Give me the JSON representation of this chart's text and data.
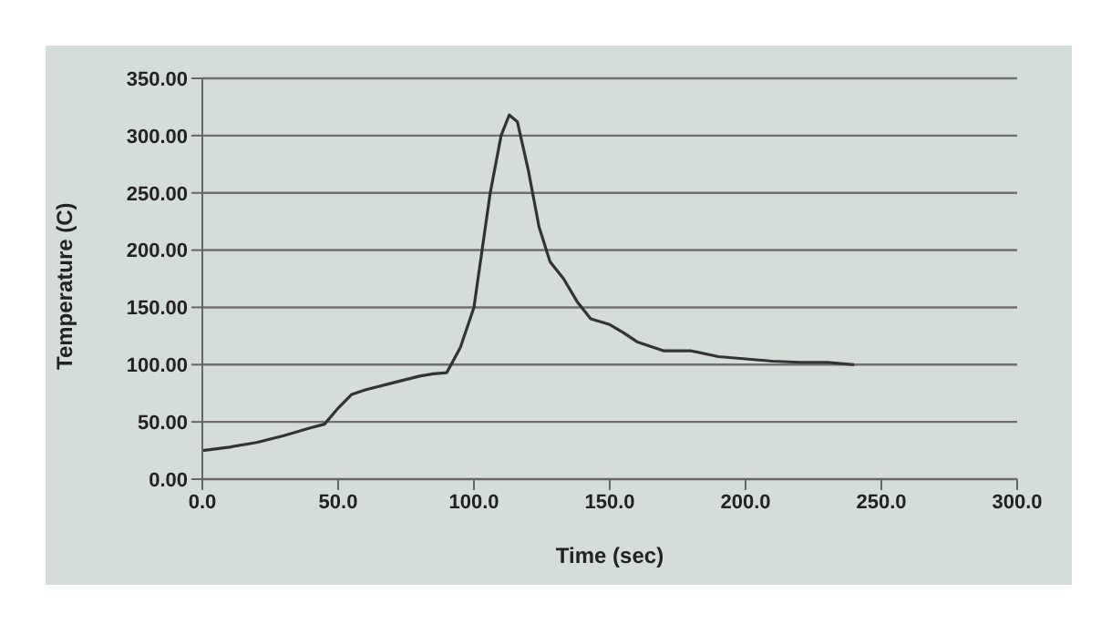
{
  "chart_data": {
    "type": "line",
    "xlabel": "Time (sec)",
    "ylabel": "Temperature (C)",
    "x": [
      0,
      10,
      20,
      30,
      40,
      45,
      50,
      55,
      60,
      70,
      80,
      85,
      90,
      95,
      100,
      103,
      106,
      110,
      113,
      116,
      120,
      124,
      128,
      133,
      138,
      143,
      150,
      155,
      160,
      170,
      180,
      190,
      200,
      210,
      220,
      230,
      240
    ],
    "series": [
      {
        "color": "#333333",
        "values": [
          25,
          28,
          32,
          38,
          45,
          48,
          62,
          74,
          78,
          84,
          90,
          92,
          93,
          115,
          150,
          200,
          250,
          300,
          318,
          312,
          270,
          220,
          190,
          175,
          155,
          140,
          135,
          128,
          120,
          112,
          112,
          107,
          105,
          103,
          102,
          102,
          100
        ]
      }
    ],
    "xlim": [
      0,
      300
    ],
    "xticks": [
      {
        "value": 0,
        "label": "0.0"
      },
      {
        "value": 50,
        "label": "50.0"
      },
      {
        "value": 100,
        "label": "100.0"
      },
      {
        "value": 150,
        "label": "150.0"
      },
      {
        "value": 200,
        "label": "200.0"
      },
      {
        "value": 250,
        "label": "250.0"
      },
      {
        "value": 300,
        "label": "300.0"
      }
    ],
    "ylim": [
      0,
      350
    ],
    "yticks": [
      {
        "value": 0,
        "label": "0.00"
      },
      {
        "value": 50,
        "label": "50.00"
      },
      {
        "value": 100,
        "label": "100.00"
      },
      {
        "value": 150,
        "label": "150.00"
      },
      {
        "value": 200,
        "label": "200.00"
      },
      {
        "value": 250,
        "label": "250.00"
      },
      {
        "value": 300,
        "label": "300.00"
      },
      {
        "value": 350,
        "label": "350.00"
      }
    ],
    "grid": "y",
    "legend": false,
    "marker": "none",
    "line_style": "solid"
  }
}
